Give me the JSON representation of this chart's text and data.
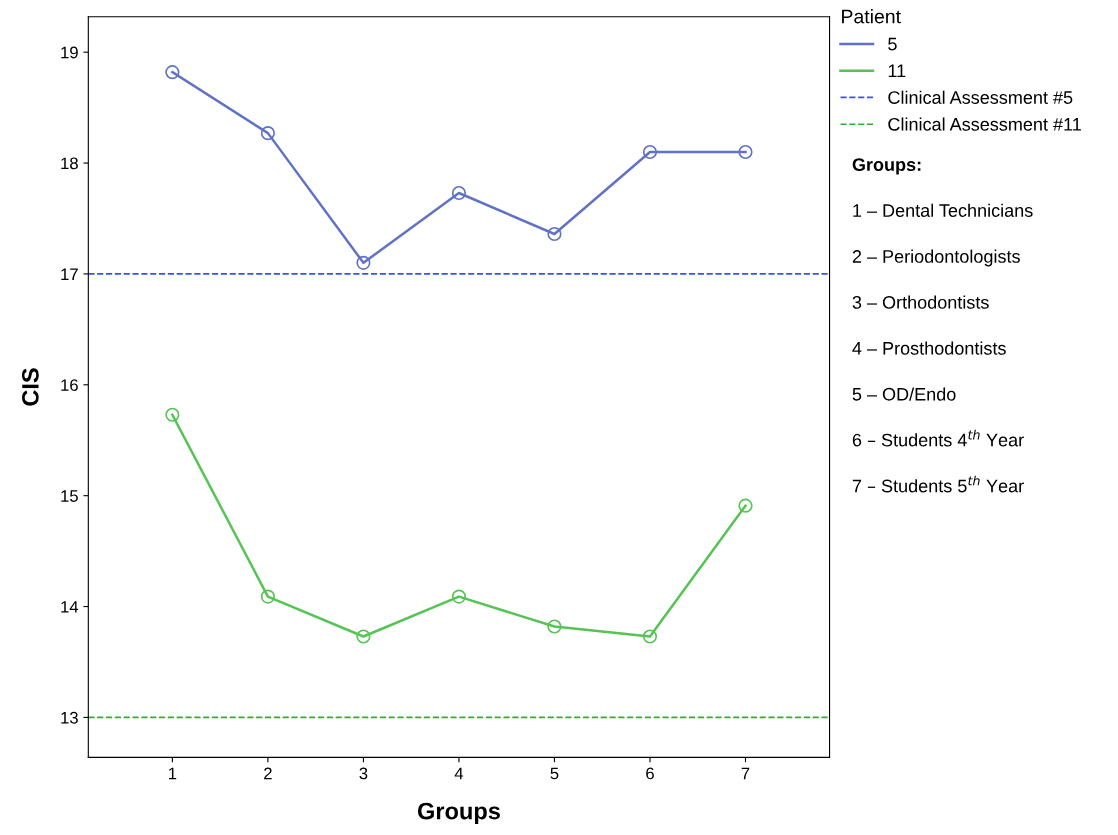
{
  "chart_data": {
    "type": "line",
    "xlabel": "Groups",
    "ylabel": "CIS",
    "legend_title": "Patient",
    "legend": "right",
    "marker": "circle",
    "line_style": "solid",
    "grid": false,
    "x": [
      1,
      2,
      3,
      4,
      5,
      6,
      7
    ],
    "xlim": [
      0.12,
      7.88
    ],
    "xticks": [
      1,
      2,
      3,
      4,
      5,
      6,
      7
    ],
    "ylim": [
      12.64,
      19.32
    ],
    "yticks": [
      13,
      14,
      15,
      16,
      17,
      18,
      19
    ],
    "series": [
      {
        "name": "5",
        "color": "#6172c6",
        "values": [
          18.82,
          18.27,
          17.1,
          17.73,
          17.36,
          18.1,
          18.1
        ]
      },
      {
        "name": "11",
        "color": "#55c455",
        "values": [
          15.73,
          14.09,
          13.73,
          14.09,
          13.82,
          13.73,
          14.91
        ]
      }
    ],
    "ref_lines": [
      {
        "axis": "y",
        "value": 17,
        "label": "Clinical Assessment #5",
        "color": "#3f51e0",
        "line_style": "dashed"
      },
      {
        "axis": "y",
        "value": 13,
        "label": "Clinical Assessment #11",
        "color": "#2fae2f",
        "line_style": "dashed"
      }
    ],
    "annotations": [
      "Groups:",
      "1 – Dental Technicians",
      "2 – Periodontologists",
      "3 – Orthodontists",
      "4 – Prosthodontists",
      "5 – OD/Endo",
      "6 – Students 4$^{th}$ Year",
      "7 – Students 5$^{th}$ Year"
    ]
  }
}
